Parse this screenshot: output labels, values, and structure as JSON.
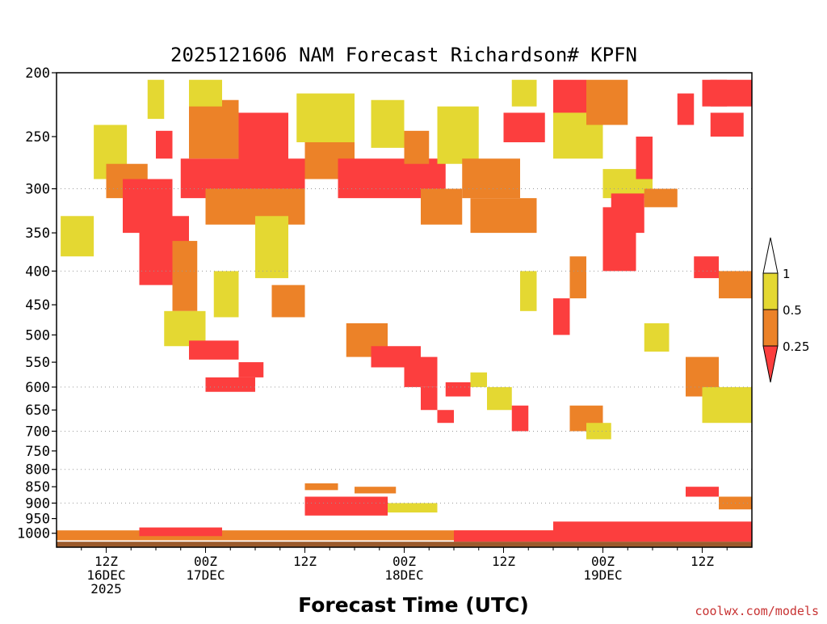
{
  "chart_data": {
    "type": "heatmap",
    "title": "2025121606 NAM Forecast Richardson# KPFN",
    "xlabel": "Forecast Time (UTC)",
    "ylabel": "",
    "credit": "coolwx.com/models",
    "y_scale": "log-pressure",
    "ylim": [
      1050,
      200
    ],
    "yticks": [
      200,
      250,
      300,
      350,
      400,
      450,
      500,
      550,
      600,
      650,
      700,
      750,
      800,
      850,
      900,
      950,
      1000
    ],
    "gridlines": [
      300,
      400,
      600,
      700,
      800,
      900
    ],
    "xlim_hours": [
      0,
      84
    ],
    "xticks": [
      {
        "hour": 6,
        "lines": [
          "12Z",
          "16DEC",
          "2025"
        ]
      },
      {
        "hour": 18,
        "lines": [
          "00Z",
          "17DEC"
        ]
      },
      {
        "hour": 30,
        "lines": [
          "12Z"
        ]
      },
      {
        "hour": 42,
        "lines": [
          "00Z",
          "18DEC"
        ]
      },
      {
        "hour": 54,
        "lines": [
          "12Z"
        ]
      },
      {
        "hour": 66,
        "lines": [
          "00Z",
          "19DEC"
        ]
      },
      {
        "hour": 78,
        "lines": [
          "12Z"
        ]
      }
    ],
    "legend": {
      "placement": "right",
      "levels": [
        "1",
        "0.5",
        "0.25"
      ],
      "bins": [
        {
          "range": "0.5-1",
          "color": "#e4d832"
        },
        {
          "range": "0.25-0.5",
          "color": "#ec8228"
        },
        {
          "range": "<0.25",
          "color": "#fc3e3e"
        }
      ]
    },
    "colors": {
      "low": "#fc3e3e",
      "mid": "#ec8228",
      "high": "#e4d832",
      "ground": "#9b5a2c"
    },
    "regions": [
      {
        "t": [
          0.5,
          4.5
        ],
        "p": [
          330,
          380
        ],
        "c": "high"
      },
      {
        "t": [
          4.5,
          8.5
        ],
        "p": [
          240,
          290
        ],
        "c": "high"
      },
      {
        "t": [
          6,
          11
        ],
        "p": [
          275,
          310
        ],
        "c": "mid"
      },
      {
        "t": [
          8,
          14
        ],
        "p": [
          290,
          350
        ],
        "c": "low"
      },
      {
        "t": [
          10,
          16
        ],
        "p": [
          330,
          420
        ],
        "c": "low"
      },
      {
        "t": [
          11,
          13
        ],
        "p": [
          205,
          235
        ],
        "c": "high"
      },
      {
        "t": [
          12,
          14
        ],
        "p": [
          245,
          270
        ],
        "c": "low"
      },
      {
        "t": [
          14,
          17
        ],
        "p": [
          360,
          460
        ],
        "c": "mid"
      },
      {
        "t": [
          15,
          30
        ],
        "p": [
          270,
          310
        ],
        "c": "low"
      },
      {
        "t": [
          16,
          22
        ],
        "p": [
          220,
          270
        ],
        "c": "mid"
      },
      {
        "t": [
          16,
          20
        ],
        "p": [
          205,
          225
        ],
        "c": "high"
      },
      {
        "t": [
          18,
          30
        ],
        "p": [
          300,
          340
        ],
        "c": "mid"
      },
      {
        "t": [
          19,
          22
        ],
        "p": [
          400,
          470
        ],
        "c": "high"
      },
      {
        "t": [
          22,
          28
        ],
        "p": [
          230,
          280
        ],
        "c": "low"
      },
      {
        "t": [
          24,
          28
        ],
        "p": [
          330,
          410
        ],
        "c": "high"
      },
      {
        "t": [
          26,
          30
        ],
        "p": [
          420,
          470
        ],
        "c": "mid"
      },
      {
        "t": [
          29,
          36
        ],
        "p": [
          215,
          255
        ],
        "c": "high"
      },
      {
        "t": [
          30,
          36
        ],
        "p": [
          255,
          290
        ],
        "c": "mid"
      },
      {
        "t": [
          34,
          47
        ],
        "p": [
          270,
          310
        ],
        "c": "low"
      },
      {
        "t": [
          38,
          42
        ],
        "p": [
          220,
          260
        ],
        "c": "high"
      },
      {
        "t": [
          42,
          45
        ],
        "p": [
          245,
          275
        ],
        "c": "mid"
      },
      {
        "t": [
          44,
          49
        ],
        "p": [
          300,
          340
        ],
        "c": "mid"
      },
      {
        "t": [
          46,
          51
        ],
        "p": [
          225,
          275
        ],
        "c": "high"
      },
      {
        "t": [
          49,
          56
        ],
        "p": [
          270,
          310
        ],
        "c": "mid"
      },
      {
        "t": [
          50,
          58
        ],
        "p": [
          310,
          350
        ],
        "c": "mid"
      },
      {
        "t": [
          54,
          59
        ],
        "p": [
          230,
          255
        ],
        "c": "low"
      },
      {
        "t": [
          55,
          58
        ],
        "p": [
          205,
          225
        ],
        "c": "high"
      },
      {
        "t": [
          60,
          64
        ],
        "p": [
          205,
          230
        ],
        "c": "low"
      },
      {
        "t": [
          60,
          66
        ],
        "p": [
          230,
          270
        ],
        "c": "high"
      },
      {
        "t": [
          64,
          69
        ],
        "p": [
          205,
          240
        ],
        "c": "mid"
      },
      {
        "t": [
          66,
          72
        ],
        "p": [
          280,
          310
        ],
        "c": "high"
      },
      {
        "t": [
          70,
          72
        ],
        "p": [
          250,
          290
        ],
        "c": "low"
      },
      {
        "t": [
          66,
          70
        ],
        "p": [
          320,
          400
        ],
        "c": "low"
      },
      {
        "t": [
          67,
          71
        ],
        "p": [
          305,
          350
        ],
        "c": "low"
      },
      {
        "t": [
          71,
          75
        ],
        "p": [
          300,
          320
        ],
        "c": "mid"
      },
      {
        "t": [
          75,
          77
        ],
        "p": [
          215,
          240
        ],
        "c": "low"
      },
      {
        "t": [
          78,
          81
        ],
        "p": [
          205,
          225
        ],
        "c": "low"
      },
      {
        "t": [
          79,
          84
        ],
        "p": [
          205,
          225
        ],
        "c": "low"
      },
      {
        "t": [
          79,
          83
        ],
        "p": [
          230,
          250
        ],
        "c": "low"
      },
      {
        "t": [
          80,
          84
        ],
        "p": [
          400,
          440
        ],
        "c": "mid"
      },
      {
        "t": [
          77,
          80
        ],
        "p": [
          380,
          410
        ],
        "c": "low"
      },
      {
        "t": [
          13,
          18
        ],
        "p": [
          460,
          520
        ],
        "c": "high"
      },
      {
        "t": [
          16,
          22
        ],
        "p": [
          510,
          545
        ],
        "c": "low"
      },
      {
        "t": [
          22,
          25
        ],
        "p": [
          550,
          580
        ],
        "c": "low"
      },
      {
        "t": [
          18,
          24
        ],
        "p": [
          580,
          610
        ],
        "c": "low"
      },
      {
        "t": [
          35,
          40
        ],
        "p": [
          480,
          540
        ],
        "c": "mid"
      },
      {
        "t": [
          38,
          44
        ],
        "p": [
          520,
          560
        ],
        "c": "low"
      },
      {
        "t": [
          42,
          46
        ],
        "p": [
          540,
          600
        ],
        "c": "low"
      },
      {
        "t": [
          44,
          46
        ],
        "p": [
          600,
          650
        ],
        "c": "low"
      },
      {
        "t": [
          46,
          48
        ],
        "p": [
          650,
          680
        ],
        "c": "low"
      },
      {
        "t": [
          47,
          50
        ],
        "p": [
          590,
          620
        ],
        "c": "low"
      },
      {
        "t": [
          50,
          52
        ],
        "p": [
          570,
          600
        ],
        "c": "high"
      },
      {
        "t": [
          52,
          55
        ],
        "p": [
          600,
          650
        ],
        "c": "high"
      },
      {
        "t": [
          55,
          57
        ],
        "p": [
          640,
          700
        ],
        "c": "low"
      },
      {
        "t": [
          62,
          66
        ],
        "p": [
          640,
          700
        ],
        "c": "mid"
      },
      {
        "t": [
          64,
          67
        ],
        "p": [
          680,
          720
        ],
        "c": "high"
      },
      {
        "t": [
          76,
          80
        ],
        "p": [
          540,
          620
        ],
        "c": "mid"
      },
      {
        "t": [
          78,
          84
        ],
        "p": [
          600,
          680
        ],
        "c": "high"
      },
      {
        "t": [
          60,
          62
        ],
        "p": [
          440,
          500
        ],
        "c": "low"
      },
      {
        "t": [
          56,
          58
        ],
        "p": [
          400,
          460
        ],
        "c": "high"
      },
      {
        "t": [
          62,
          64
        ],
        "p": [
          380,
          440
        ],
        "c": "mid"
      },
      {
        "t": [
          71,
          74
        ],
        "p": [
          480,
          530
        ],
        "c": "high"
      },
      {
        "t": [
          30,
          34
        ],
        "p": [
          840,
          860
        ],
        "c": "mid"
      },
      {
        "t": [
          30,
          40
        ],
        "p": [
          880,
          940
        ],
        "c": "low"
      },
      {
        "t": [
          36,
          41
        ],
        "p": [
          850,
          870
        ],
        "c": "mid"
      },
      {
        "t": [
          40,
          46
        ],
        "p": [
          900,
          930
        ],
        "c": "high"
      },
      {
        "t": [
          76,
          80
        ],
        "p": [
          850,
          880
        ],
        "c": "low"
      },
      {
        "t": [
          80,
          84
        ],
        "p": [
          880,
          920
        ],
        "c": "mid"
      },
      {
        "t": [
          0,
          84
        ],
        "p": [
          990,
          1025
        ],
        "c": "mid"
      },
      {
        "t": [
          10,
          20
        ],
        "p": [
          980,
          1010
        ],
        "c": "low"
      },
      {
        "t": [
          48,
          84
        ],
        "p": [
          990,
          1030
        ],
        "c": "low"
      },
      {
        "t": [
          60,
          84
        ],
        "p": [
          960,
          1000
        ],
        "c": "low"
      }
    ]
  }
}
